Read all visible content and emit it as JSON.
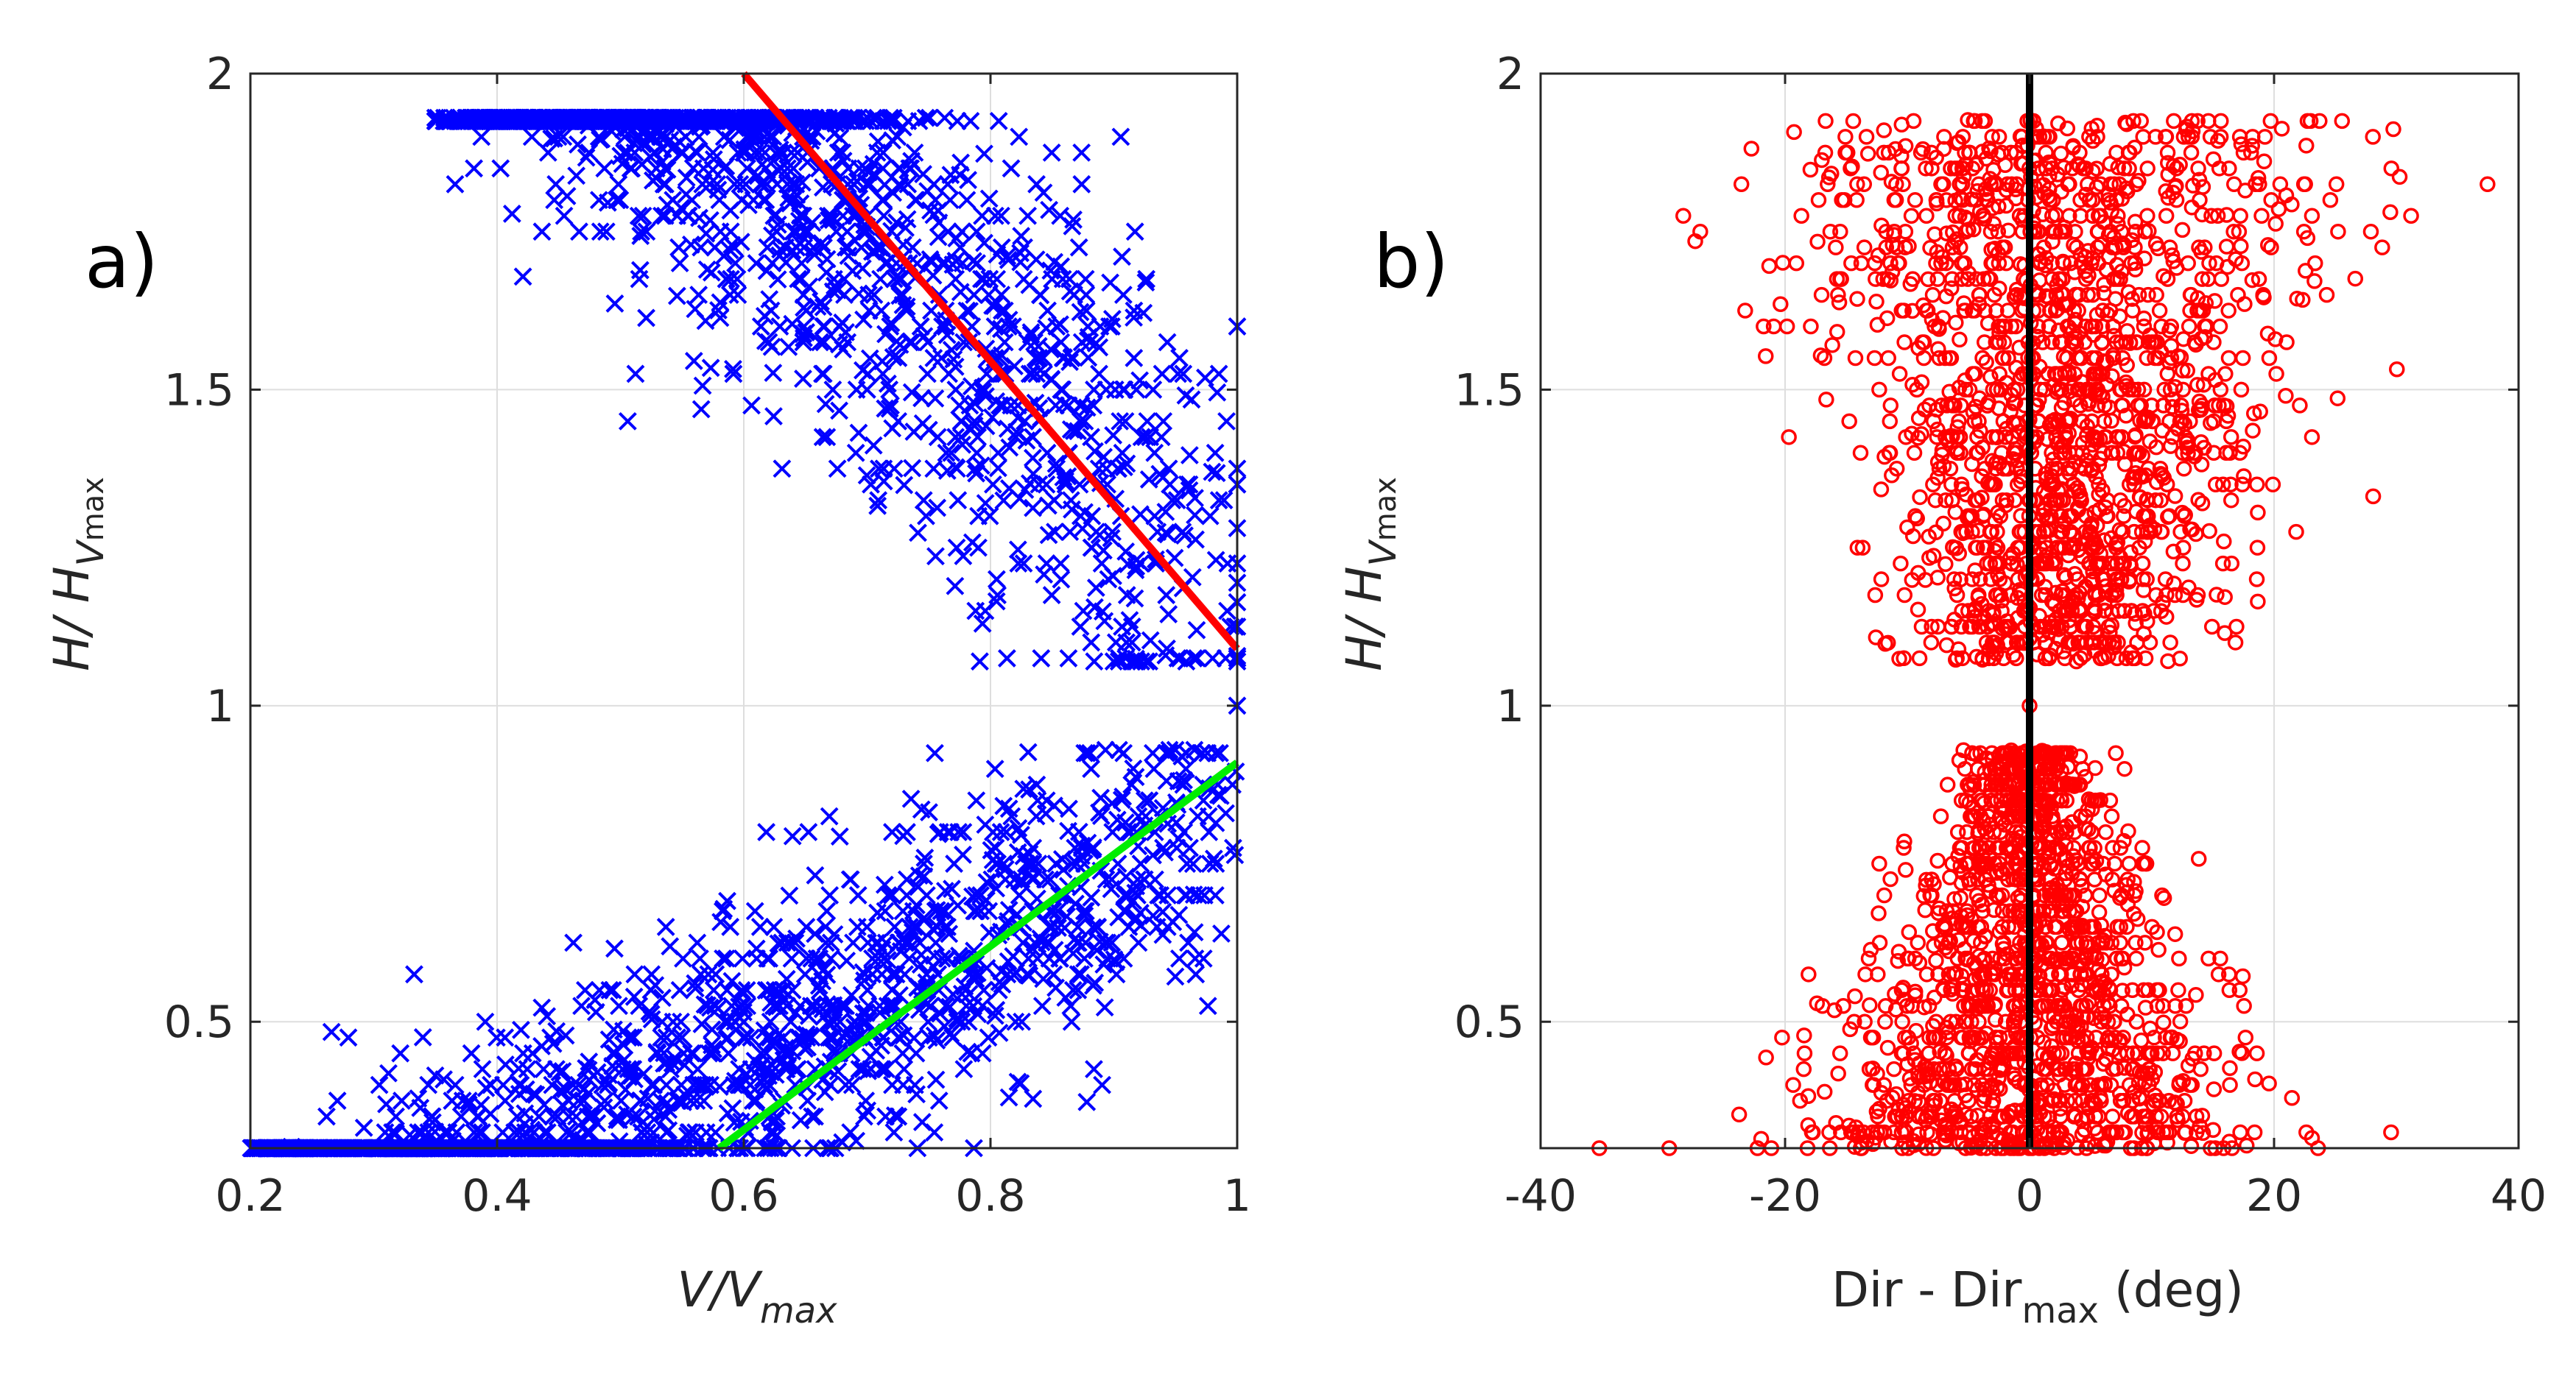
{
  "figure": {
    "background": "#ffffff"
  },
  "chart_data": [
    {
      "id": "a",
      "type": "scatter",
      "panel_label": "a)",
      "xlabel": {
        "main": "V/V",
        "sub": "max"
      },
      "ylabel": {
        "main": "H/ H",
        "sub1": "V",
        "sub2": "max"
      },
      "xlim": [
        0.2,
        1.0
      ],
      "ylim": [
        0.3,
        2.0
      ],
      "xticks": [
        0.2,
        0.4,
        0.6,
        0.8,
        1.0
      ],
      "xtick_labels": [
        "0.2",
        "0.4",
        "0.6",
        "0.8",
        "1"
      ],
      "yticks": [
        0.5,
        1.0,
        1.5,
        2.0
      ],
      "ytick_labels": [
        "0.5",
        "1",
        "1.5",
        "2"
      ],
      "grid": true,
      "marker": "x",
      "marker_color": "#0000ff",
      "clusters": [
        {
          "name": "upper",
          "x_range": [
            0.35,
            1.0
          ],
          "y_range": [
            1.07,
            1.93
          ],
          "trend": [
            [
              0.35,
              1.85
            ],
            [
              1.0,
              1.2
            ]
          ]
        },
        {
          "name": "lower",
          "x_range": [
            0.2,
            1.0
          ],
          "y_range": [
            0.3,
            0.93
          ],
          "trend": [
            [
              0.2,
              0.35
            ],
            [
              1.0,
              0.8
            ]
          ]
        }
      ],
      "lines": [
        {
          "name": "upper-fit",
          "color": "#ff0000",
          "x": [
            0.6,
            1.0
          ],
          "y": [
            2.0,
            1.09
          ]
        },
        {
          "name": "lower-fit",
          "color": "#00ee00",
          "x": [
            0.58,
            1.0
          ],
          "y": [
            0.3,
            0.91
          ]
        }
      ],
      "special_points": [
        {
          "x": 1.0,
          "y": 1.0
        }
      ]
    },
    {
      "id": "b",
      "type": "scatter",
      "panel_label": "b)",
      "xlabel": {
        "main": "Dir - Dir",
        "sub": "max",
        "suffix": " (deg)"
      },
      "ylabel": {
        "main": "H/ H",
        "sub1": "V",
        "sub2": "max"
      },
      "xlim": [
        -40,
        40
      ],
      "ylim": [
        0.3,
        2.0
      ],
      "xticks": [
        -40,
        -20,
        0,
        20,
        40
      ],
      "xtick_labels": [
        "-40",
        "-20",
        "0",
        "20",
        "40"
      ],
      "yticks": [
        0.5,
        1.0,
        1.5,
        2.0
      ],
      "ytick_labels": [
        "0.5",
        "1",
        "1.5",
        "2"
      ],
      "grid": true,
      "marker": "o",
      "marker_color": "#ff0000",
      "clusters": [
        {
          "name": "upper",
          "y_range": [
            1.07,
            1.93
          ],
          "center": 0,
          "spread_top": 22,
          "spread_bottom": 8
        },
        {
          "name": "lower",
          "y_range": [
            0.3,
            0.93
          ],
          "center": 0,
          "spread_top": 4,
          "spread_bottom": 16
        }
      ],
      "lines": [
        {
          "name": "zero-line",
          "color": "#000000",
          "x": [
            0,
            0
          ],
          "y": [
            0.3,
            2.0
          ]
        }
      ],
      "special_points": [
        {
          "x": 0,
          "y": 1.0
        }
      ]
    }
  ]
}
